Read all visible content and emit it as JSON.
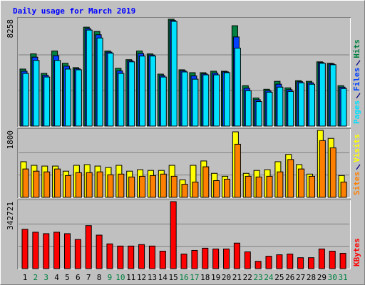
{
  "chart_data": {
    "type": "bar",
    "title": "Daily usage for March 2019",
    "categories": [
      "1",
      "2",
      "3",
      "4",
      "5",
      "6",
      "7",
      "8",
      "9",
      "10",
      "11",
      "12",
      "13",
      "14",
      "15",
      "16",
      "17",
      "18",
      "19",
      "20",
      "21",
      "22",
      "23",
      "24",
      "25",
      "26",
      "27",
      "28",
      "29",
      "30",
      "31"
    ],
    "category_colors": [
      "#000000",
      "#008040",
      "#008040",
      "#000000",
      "#000000",
      "#000000",
      "#000000",
      "#000000",
      "#008040",
      "#008040",
      "#000000",
      "#000000",
      "#000000",
      "#000000",
      "#000000",
      "#008040",
      "#008040",
      "#000000",
      "#000000",
      "#000000",
      "#000000",
      "#000000",
      "#008040",
      "#008040",
      "#000000",
      "#000000",
      "#000000",
      "#000000",
      "#000000",
      "#008040",
      "#008040"
    ],
    "panels": [
      {
        "ylim": [
          0,
          8258
        ],
        "yticks": [
          8258
        ],
        "series": [
          {
            "name": "Hits",
            "color": "#008040",
            "values": [
              4408,
              5580,
              4073,
              5803,
              4854,
              4520,
              7645,
              7310,
              5803,
              4464,
              5134,
              5803,
              5580,
              4018,
              8258,
              4352,
              4129,
              4129,
              4241,
              4241,
              7756,
              3125,
              2176,
              2846,
              3460,
              2957,
              3515,
              3460,
              4966,
              4854,
              3125
            ]
          },
          {
            "name": "Files",
            "color": "#0040ff",
            "values": [
              4240,
              5330,
              3930,
              5440,
              4630,
              4430,
              7530,
              7060,
              5720,
              4270,
              5050,
              5610,
              5500,
              3900,
              8170,
              4270,
              3880,
              4040,
              4100,
              4190,
              6890,
              2930,
              2040,
              2730,
              3240,
              2820,
              3430,
              3350,
              4910,
              4800,
              3010
            ]
          },
          {
            "name": "Pages",
            "color": "#00e0ff",
            "values": [
              4073,
              5078,
              3794,
              5078,
              4408,
              4352,
              7422,
              6808,
              5636,
              4073,
              4966,
              5413,
              5413,
              3794,
              8091,
              4185,
              3627,
              3962,
              3962,
              4129,
              6027,
              2734,
              1897,
              2623,
              3013,
              2678,
              3348,
              3237,
              4854,
              4743,
              2902
            ]
          }
        ]
      },
      {
        "ylim": [
          0,
          1800
        ],
        "yticks": [
          1800
        ],
        "series": [
          {
            "name": "Visits",
            "color": "#ffff00",
            "values": [
              958,
              861,
              841,
              841,
              704,
              861,
              880,
              841,
              802,
              861,
              704,
              743,
              724,
              724,
              861,
              470,
              861,
              978,
              646,
              567,
              1761,
              646,
              724,
              743,
              958,
              1154,
              880,
              626,
              1800,
              1585,
              587
            ]
          },
          {
            "name": "Sites",
            "color": "#ff8000",
            "values": [
              763,
              704,
              685,
              763,
              587,
              665,
              665,
              685,
              607,
              626,
              548,
              567,
              587,
              626,
              567,
              352,
              411,
              822,
              450,
              489,
              1428,
              567,
              548,
              567,
              685,
              1017,
              763,
              567,
              1526,
              1330,
              411
            ]
          }
        ]
      },
      {
        "ylim": [
          0,
          342721
        ],
        "yticks": [
          342721
        ],
        "series": [
          {
            "name": "KBytes",
            "color": "#ff0000",
            "values": [
              201173,
              186270,
              178820,
              186270,
              178820,
              149016,
              219800,
              171369,
              126664,
              115488,
              115488,
              122938,
              115488,
              89410,
              342721,
              74508,
              93135,
              104311,
              100585,
              100585,
              130389,
              85684,
              37254,
              63332,
              70782,
              74508,
              55881,
              55881,
              100585,
              89410,
              78233
            ]
          }
        ]
      }
    ]
  }
}
